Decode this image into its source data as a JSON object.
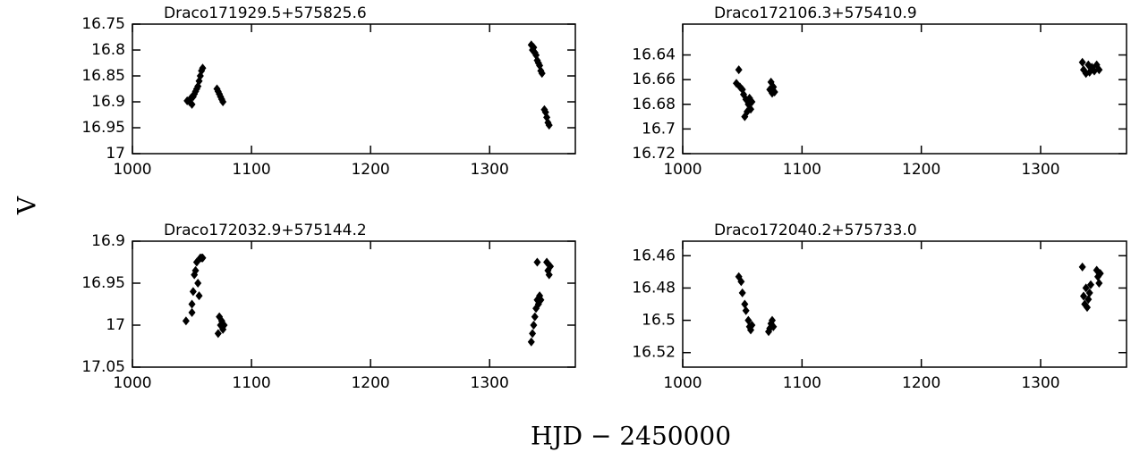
{
  "figure": {
    "xlabel": "HJD − 2450000",
    "ylabel": "V"
  },
  "chart_data": [
    {
      "type": "scatter",
      "title": "Draco171929.5+575825.6",
      "color": "#000000",
      "x": [
        1046,
        1048,
        1049,
        1050,
        1051,
        1052,
        1053,
        1054,
        1055,
        1056,
        1057,
        1058,
        1059,
        1071,
        1072,
        1073,
        1074,
        1075,
        1076,
        1335,
        1336,
        1337,
        1338,
        1339,
        1340,
        1341,
        1342,
        1343,
        1344,
        1346,
        1347,
        1348,
        1349,
        1350
      ],
      "values": [
        16.898,
        16.9,
        16.893,
        16.905,
        16.89,
        16.885,
        16.88,
        16.875,
        16.87,
        16.86,
        16.85,
        16.84,
        16.835,
        16.875,
        16.88,
        16.885,
        16.89,
        16.895,
        16.9,
        16.79,
        16.8,
        16.795,
        16.805,
        16.81,
        16.82,
        16.825,
        16.83,
        16.84,
        16.845,
        16.915,
        16.92,
        16.93,
        16.94,
        16.945
      ],
      "xlim": [
        1000,
        1372
      ],
      "xticks": [
        1000,
        1100,
        1200,
        1300
      ],
      "ylim": [
        17,
        16.75
      ],
      "yticks": [
        16.75,
        16.8,
        16.85,
        16.9,
        16.95,
        17
      ]
    },
    {
      "type": "scatter",
      "title": "Draco172106.3+575410.9",
      "color": "#000000",
      "x": [
        1045,
        1047,
        1048,
        1050,
        1051,
        1052,
        1053,
        1054,
        1055,
        1056,
        1057,
        1058,
        1073,
        1074,
        1075,
        1076,
        1077,
        1335,
        1336,
        1338,
        1340,
        1341,
        1343,
        1345,
        1347,
        1349
      ],
      "values": [
        16.663,
        16.652,
        16.666,
        16.668,
        16.672,
        16.69,
        16.676,
        16.686,
        16.68,
        16.675,
        16.684,
        16.678,
        16.668,
        16.662,
        16.671,
        16.666,
        16.67,
        16.646,
        16.652,
        16.655,
        16.648,
        16.654,
        16.65,
        16.653,
        16.648,
        16.652
      ],
      "xlim": [
        1000,
        1372
      ],
      "xticks": [
        1000,
        1100,
        1200,
        1300
      ],
      "ylim": [
        16.72,
        16.615
      ],
      "yticks": [
        16.64,
        16.66,
        16.68,
        16.7,
        16.72
      ]
    },
    {
      "type": "scatter",
      "title": "Draco172032.9+575144.2",
      "color": "#000000",
      "x": [
        1045,
        1050,
        1050,
        1051,
        1052,
        1053,
        1054,
        1055,
        1056,
        1057,
        1058,
        1059,
        1072,
        1073,
        1074,
        1075,
        1076,
        1077,
        1335,
        1336,
        1337,
        1338,
        1339,
        1340,
        1341,
        1342,
        1343,
        1340,
        1348,
        1349,
        1350,
        1351
      ],
      "values": [
        16.995,
        16.985,
        16.975,
        16.96,
        16.94,
        16.935,
        16.925,
        16.95,
        16.965,
        16.92,
        16.92,
        16.92,
        17.01,
        16.99,
        17,
        16.995,
        17.005,
        17,
        17.02,
        17.01,
        17,
        16.99,
        16.98,
        16.97,
        16.975,
        16.965,
        16.97,
        16.925,
        16.925,
        16.935,
        16.94,
        16.93
      ],
      "xlim": [
        1000,
        1372
      ],
      "xticks": [
        1000,
        1100,
        1200,
        1300
      ],
      "ylim": [
        17.05,
        16.9
      ],
      "yticks": [
        16.9,
        16.95,
        17,
        17.05
      ]
    },
    {
      "type": "scatter",
      "title": "Draco172040.2+575733.0",
      "color": "#000000",
      "x": [
        1047,
        1049,
        1050,
        1052,
        1053,
        1055,
        1056,
        1057,
        1058,
        1072,
        1073,
        1074,
        1075,
        1076,
        1335,
        1336,
        1337,
        1338,
        1339,
        1340,
        1341,
        1342,
        1347,
        1348,
        1349,
        1350
      ],
      "values": [
        16.473,
        16.476,
        16.483,
        16.49,
        16.494,
        16.5,
        16.504,
        16.506,
        16.503,
        16.507,
        16.505,
        16.502,
        16.5,
        16.504,
        16.467,
        16.485,
        16.49,
        16.48,
        16.492,
        16.487,
        16.483,
        16.478,
        16.469,
        16.473,
        16.477,
        16.471
      ],
      "xlim": [
        1000,
        1372
      ],
      "xticks": [
        1000,
        1100,
        1200,
        1300
      ],
      "ylim": [
        16.529,
        16.451
      ],
      "yticks": [
        16.46,
        16.48,
        16.5,
        16.52
      ]
    }
  ]
}
